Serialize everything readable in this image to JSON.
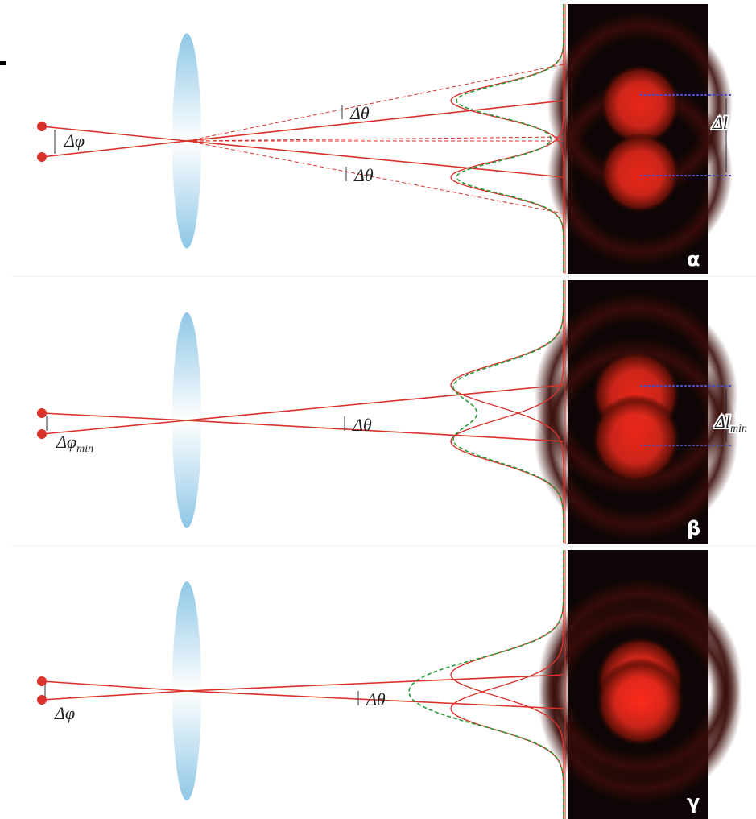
{
  "panels": [
    {
      "source_label": "Δφ",
      "angle_labels": [
        "Δθ",
        "Δθ"
      ],
      "separation_label": {
        "main": "Δl"
      },
      "corner_label": "α"
    },
    {
      "source_label": {
        "main": "Δφ",
        "sub": "min"
      },
      "angle_labels": [
        "Δθ"
      ],
      "separation_label": {
        "main": "Δl",
        "sub": "min"
      },
      "corner_label": "β"
    },
    {
      "source_label": "Δφ",
      "angle_labels": [
        "Δθ"
      ],
      "corner_label": "γ"
    }
  ]
}
